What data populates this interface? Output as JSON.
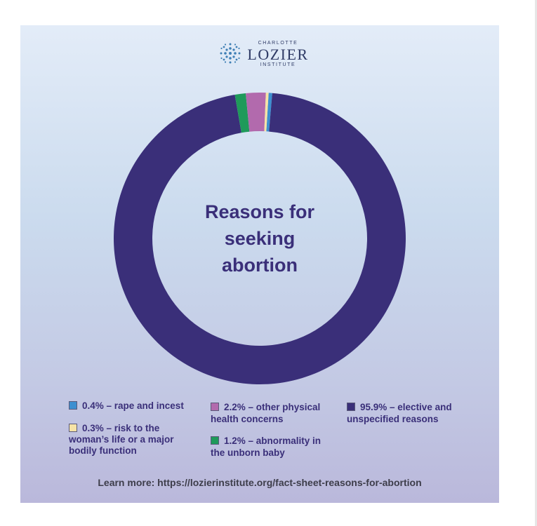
{
  "logo": {
    "top_text": "CHARLOTTE",
    "main_text": "LOZIER",
    "bottom_text": "INSTITUTE"
  },
  "chart_data": {
    "type": "pie",
    "title": "Reasons for seeking abortion",
    "title_lines": [
      "Reasons for",
      "seeking",
      "abortion"
    ],
    "categories": [
      "rape and incest",
      "risk to the woman’s life or a major bodily function",
      "other physical health concerns",
      "abnormality in the unborn baby",
      "elective and unspecified reasons"
    ],
    "values": [
      0.4,
      0.3,
      2.2,
      1.2,
      95.9
    ],
    "colors": [
      "#3d8fd0",
      "#f6e3a6",
      "#b26aad",
      "#1f9a5a",
      "#3a2f79"
    ],
    "legend": [
      {
        "label": "0.4% – rape and incest",
        "color": "#3d8fd0"
      },
      {
        "label": "0.3% – risk to the woman’s life or a major bodily function",
        "color": "#f6e3a6"
      },
      {
        "label": "2.2% – other physical health concerns",
        "color": "#b26aad"
      },
      {
        "label": "1.2% – abnormality in the unborn baby",
        "color": "#1f9a5a"
      },
      {
        "label": "95.9% – elective and unspecified reasons",
        "color": "#3a2f79"
      }
    ],
    "legend_lines": [
      [
        "0.4% – rape and incest"
      ],
      [
        "0.3% – risk to the",
        "woman’s life or a major",
        "bodily function"
      ],
      [
        "2.2% – other physical",
        "health concerns"
      ],
      [
        "1.2% – abnormality in",
        "the unborn baby"
      ],
      [
        "95.9% – elective and",
        "unspecified reasons"
      ]
    ]
  },
  "footer": {
    "text": "Learn more: https://lozierinstitute.org/fact-sheet-reasons-for-abortion"
  }
}
